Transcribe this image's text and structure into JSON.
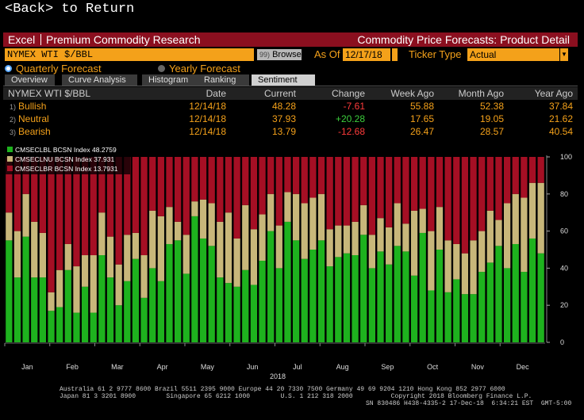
{
  "back_text": "<Back> to Return",
  "header": {
    "excel_label": "Excel",
    "premium_label": "Premium Commodity Research",
    "title": "Commodity Price Forecasts: Product Detail"
  },
  "ticker": {
    "value": "NYMEX WTI $/BBL",
    "browse_num": "99)",
    "browse_label": "Browse",
    "asof_label": "As Of",
    "date": "12/17/18",
    "type_label": "Ticker Type",
    "type_value": "Actual"
  },
  "radios": {
    "quarterly": "Quarterly Forecast",
    "yearly": "Yearly Forecast"
  },
  "tabs": [
    "Overview",
    "Curve Analysis",
    "Histogram",
    "Ranking",
    "Sentiment"
  ],
  "table": {
    "headers": {
      "name": "NYMEX WTI $/BBL",
      "date": "Date",
      "current": "Current",
      "change": "Change",
      "week": "Week Ago",
      "month": "Month Ago",
      "year": "Year Ago"
    },
    "rows": [
      {
        "num": "1)",
        "name": "Bullish",
        "date": "12/14/18",
        "current": "48.28",
        "change": "-7.61",
        "week": "55.88",
        "month": "52.38",
        "year": "37.84"
      },
      {
        "num": "2)",
        "name": "Neutral",
        "date": "12/14/18",
        "current": "37.93",
        "change": "+20.28",
        "week": "17.65",
        "month": "19.05",
        "year": "21.62"
      },
      {
        "num": "3)",
        "name": "Bearish",
        "date": "12/14/18",
        "current": "13.79",
        "change": "-12.68",
        "week": "26.47",
        "month": "28.57",
        "year": "40.54"
      }
    ]
  },
  "chart_data": {
    "type": "bar",
    "stacked": true,
    "xlabel": "2018",
    "months": [
      "Jan",
      "Feb",
      "Mar",
      "Apr",
      "May",
      "Jun",
      "Jul",
      "Aug",
      "Sep",
      "Oct",
      "Nov",
      "Dec"
    ],
    "ylim": [
      0,
      100
    ],
    "yticks": [
      0,
      20,
      40,
      60,
      80,
      100
    ],
    "y_axis_side": "right",
    "legend_placement": "top-left",
    "series": [
      {
        "name": "CMSECLBL BCSN Index 48.2759",
        "color": "#1eb21e",
        "values": [
          55,
          35,
          57,
          35,
          35,
          17,
          19,
          39,
          16,
          30,
          16,
          47,
          35,
          20,
          33,
          45,
          24,
          40,
          33,
          53,
          55,
          37,
          68,
          56,
          52,
          35,
          32,
          30,
          39,
          31,
          44,
          60,
          40,
          65,
          55,
          45,
          50,
          55,
          41,
          46,
          48,
          47,
          58,
          40,
          49,
          42,
          52,
          49,
          36,
          59,
          28,
          50,
          27,
          34,
          26,
          26,
          38,
          43,
          52,
          40,
          53,
          38,
          56,
          48
        ]
      },
      {
        "name": "CMSECLNU BCSN Index 37.931",
        "color": "#c8b77a",
        "values": [
          15,
          25,
          23,
          30,
          24,
          10,
          20,
          14,
          25,
          17,
          31,
          23,
          22,
          22,
          25,
          14,
          23,
          31,
          35,
          20,
          10,
          21,
          8,
          21,
          23,
          30,
          38,
          26,
          35,
          30,
          25,
          20,
          23,
          16,
          25,
          30,
          28,
          25,
          20,
          17,
          15,
          18,
          16,
          18,
          18,
          20,
          23,
          15,
          35,
          13,
          32,
          23,
          28,
          19,
          22,
          29,
          22,
          28,
          14,
          35,
          27,
          40,
          30,
          38
        ]
      },
      {
        "name": "CMSECLBR BCSN Index 13.7931",
        "color": "#a50f24",
        "values": [
          30,
          40,
          20,
          35,
          41,
          73,
          61,
          47,
          59,
          53,
          53,
          30,
          43,
          58,
          42,
          41,
          53,
          29,
          32,
          27,
          35,
          42,
          24,
          23,
          25,
          35,
          30,
          44,
          26,
          39,
          31,
          20,
          37,
          19,
          20,
          25,
          22,
          20,
          39,
          37,
          37,
          35,
          26,
          42,
          33,
          38,
          25,
          36,
          29,
          28,
          40,
          27,
          45,
          47,
          52,
          45,
          40,
          29,
          34,
          25,
          20,
          22,
          14,
          14
        ]
      }
    ]
  },
  "footer": {
    "line1": "Australia 61 2 9777 8600 Brazil 5511 2395 9000 Europe 44 20 7330 7500 Germany 49 69 9204 1210 Hong Kong 852 2977 6000",
    "line2": "Japan 81 3 3201 8900        Singapore 65 6212 1000        U.S. 1 212 318 2000          Copyright 2018 Bloomberg Finance L.P.",
    "line3": "SN 830486 H438-4335-2 17-Dec-18  6:34:21 EST  GMT-5:00"
  }
}
